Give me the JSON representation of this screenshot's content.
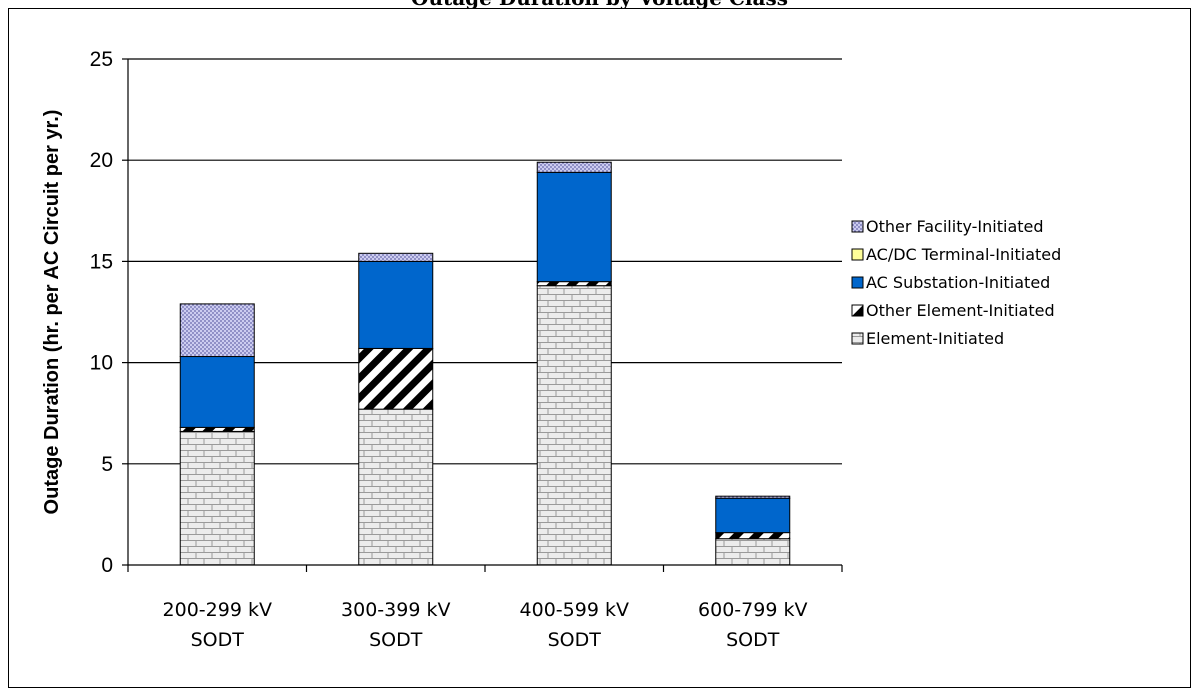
{
  "chart_data": {
    "type": "bar",
    "stacked": true,
    "title": "Outage Duration by Voltage Class",
    "ylabel": "Outage Duration (hr. per AC Circuit per yr.)",
    "xlabel": "",
    "ylim": [
      0,
      25
    ],
    "yticks": [
      0,
      5,
      10,
      15,
      20,
      25
    ],
    "grid": true,
    "legend_position": "right",
    "categories": [
      [
        "200-299 kV",
        "SODT"
      ],
      [
        "300-399 kV",
        "SODT"
      ],
      [
        "400-599 kV",
        "SODT"
      ],
      [
        "600-799 kV",
        "SODT"
      ]
    ],
    "series": [
      {
        "name": "Element-Initiated",
        "values": [
          6.6,
          7.7,
          13.8,
          1.3
        ],
        "pattern": "brick",
        "color": "#e8e8e8"
      },
      {
        "name": "Other Element-Initiated",
        "values": [
          0.2,
          3.0,
          0.2,
          0.3
        ],
        "pattern": "diagonal",
        "color": "#000000"
      },
      {
        "name": "AC Substation-Initiated",
        "values": [
          3.5,
          4.3,
          5.4,
          1.7
        ],
        "pattern": "solid",
        "color": "#0066cc"
      },
      {
        "name": "AC/DC Terminal-Initiated",
        "values": [
          0,
          0,
          0,
          0
        ],
        "pattern": "solid",
        "color": "#ffff99"
      },
      {
        "name": "Other Facility-Initiated",
        "values": [
          2.6,
          0.4,
          0.5,
          0.1
        ],
        "pattern": "dots",
        "color": "#9999dd"
      }
    ],
    "legend_order": [
      "Other Facility-Initiated",
      "AC/DC Terminal-Initiated",
      "AC Substation-Initiated",
      "Other Element-Initiated",
      "Element-Initiated"
    ]
  }
}
